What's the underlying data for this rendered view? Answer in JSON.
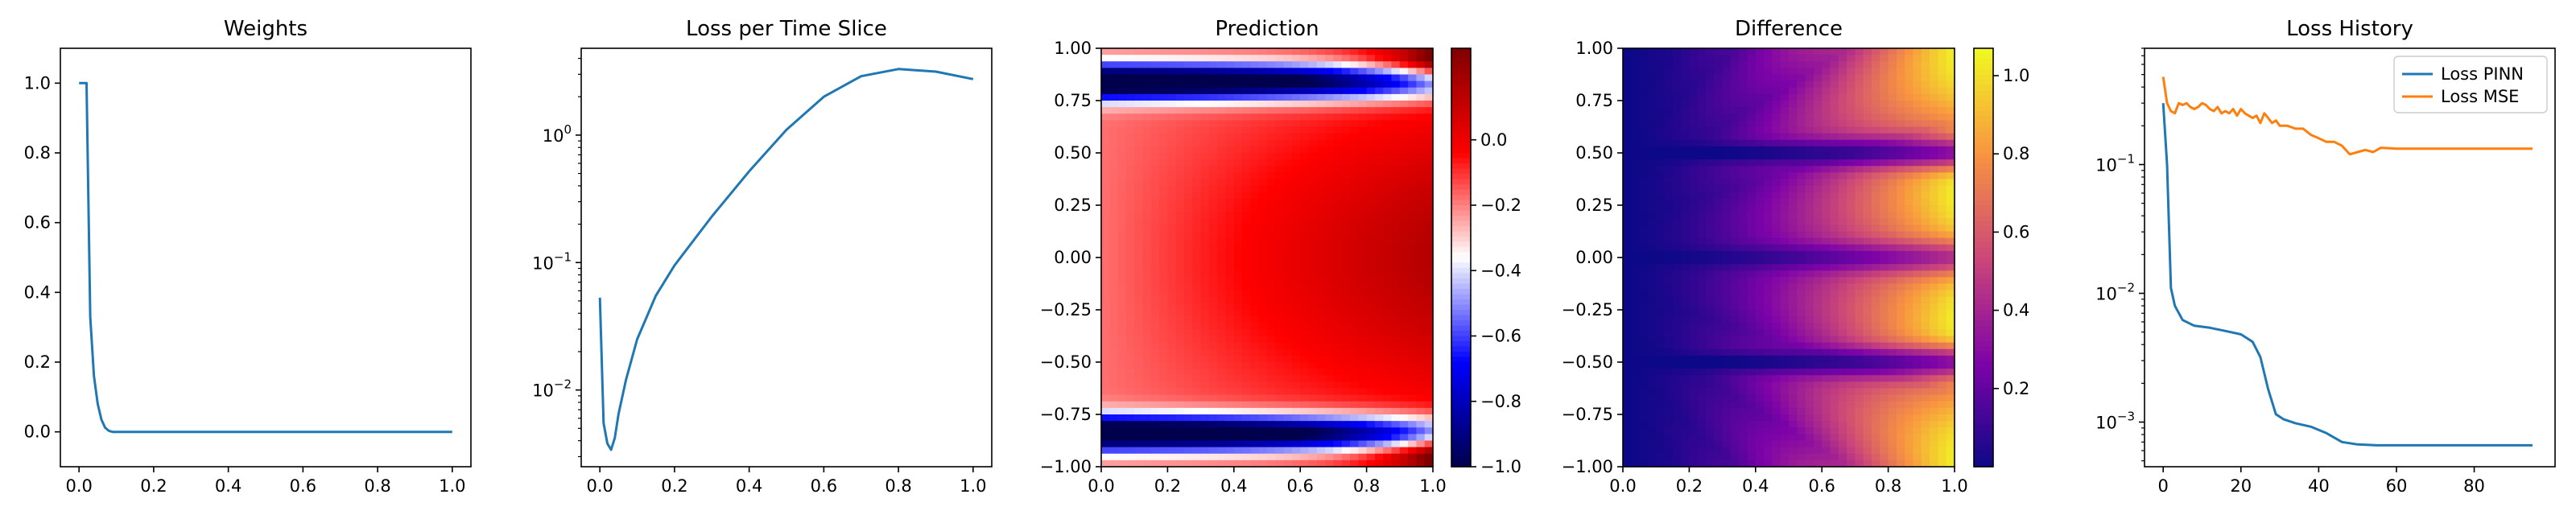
{
  "chart_data": [
    {
      "type": "line",
      "title": "Weights",
      "xlim": [
        -0.05,
        1.05
      ],
      "ylim": [
        -0.1,
        1.1
      ],
      "xticks": [
        "0.0",
        "0.2",
        "0.4",
        "0.6",
        "0.8",
        "1.0"
      ],
      "yticks": [
        "0.0",
        "0.2",
        "0.4",
        "0.6",
        "0.8",
        "1.0"
      ],
      "grid": false,
      "series": [
        {
          "color": "#1f77b4",
          "x": [
            0.0,
            0.01,
            0.02,
            0.03,
            0.04,
            0.05,
            0.06,
            0.07,
            0.08,
            0.09,
            0.1,
            0.2,
            0.4,
            0.6,
            0.8,
            1.0
          ],
          "y": [
            1.0,
            1.0,
            1.0,
            0.33,
            0.16,
            0.08,
            0.035,
            0.012,
            0.003,
            0.0,
            0.0,
            0.0,
            0.0,
            0.0,
            0.0,
            0.0
          ]
        }
      ]
    },
    {
      "type": "line",
      "title": "Loss per Time Slice",
      "yscale": "log",
      "xlim": [
        -0.05,
        1.05
      ],
      "ylim": [
        0.0025,
        4.8
      ],
      "xticks": [
        "0.0",
        "0.2",
        "0.4",
        "0.6",
        "0.8",
        "1.0"
      ],
      "yticks": [
        {
          "value": 0.01,
          "label": "10",
          "exp": "−2"
        },
        {
          "value": 0.1,
          "label": "10",
          "exp": "−1"
        },
        {
          "value": 1,
          "label": "10",
          "exp": "0"
        }
      ],
      "grid": false,
      "series": [
        {
          "color": "#1f77b4",
          "x": [
            0.0,
            0.01,
            0.02,
            0.03,
            0.04,
            0.05,
            0.07,
            0.1,
            0.15,
            0.2,
            0.3,
            0.4,
            0.5,
            0.6,
            0.7,
            0.8,
            0.9,
            1.0
          ],
          "y": [
            0.053,
            0.0055,
            0.0038,
            0.0034,
            0.0042,
            0.0065,
            0.012,
            0.025,
            0.055,
            0.095,
            0.23,
            0.52,
            1.1,
            2.0,
            2.9,
            3.3,
            3.15,
            2.75
          ]
        }
      ]
    },
    {
      "type": "heatmap",
      "title": "Prediction",
      "colormap": "seismic",
      "xlim": [
        0.0,
        1.0
      ],
      "ylim": [
        -1.0,
        1.0
      ],
      "clim": [
        -1.0,
        0.28
      ],
      "xticks": [
        "0.0",
        "0.2",
        "0.4",
        "0.6",
        "0.8",
        "1.0"
      ],
      "yticks": [
        "−1.00",
        "−0.75",
        "−0.50",
        "−0.25",
        "0.00",
        "0.25",
        "0.50",
        "0.75",
        "1.00"
      ],
      "colorbar_ticks": [
        "0.0",
        "−0.2",
        "−0.4",
        "−0.6",
        "−0.8",
        "−1.0"
      ],
      "colorbar_values": [
        0.0,
        -0.2,
        -0.4,
        -0.6,
        -0.8,
        -1.0
      ]
    },
    {
      "type": "heatmap",
      "title": "Difference",
      "colormap": "plasma",
      "xlim": [
        0.0,
        1.0
      ],
      "ylim": [
        -1.0,
        1.0
      ],
      "clim": [
        0.0,
        1.07
      ],
      "xticks": [
        "0.0",
        "0.2",
        "0.4",
        "0.6",
        "0.8",
        "1.0"
      ],
      "yticks": [
        "−1.00",
        "−0.75",
        "−0.50",
        "−0.25",
        "0.00",
        "0.25",
        "0.50",
        "0.75",
        "1.00"
      ],
      "colorbar_ticks": [
        "0.2",
        "0.4",
        "0.6",
        "0.8",
        "1.0"
      ],
      "colorbar_values": [
        0.2,
        0.4,
        0.6,
        0.8,
        1.0
      ]
    },
    {
      "type": "line",
      "title": "Loss History",
      "yscale": "log",
      "xlim": [
        -4.8,
        100.8
      ],
      "ylim": [
        0.00045,
        0.8
      ],
      "xticks": [
        0,
        20,
        40,
        60,
        80
      ],
      "yticks": [
        {
          "value": 0.001,
          "label": "10",
          "exp": "−3"
        },
        {
          "value": 0.01,
          "label": "10",
          "exp": "−2"
        },
        {
          "value": 0.1,
          "label": "10",
          "exp": "−1"
        }
      ],
      "legend": "top-right",
      "grid": false,
      "series": [
        {
          "name": "Loss PINN",
          "color": "#1f77b4",
          "x": [
            0,
            1,
            2,
            3,
            5,
            8,
            12,
            16,
            20,
            23,
            25,
            27,
            29,
            31,
            34,
            38,
            42,
            46,
            50,
            55,
            60,
            70,
            80,
            90,
            95
          ],
          "y": [
            0.3,
            0.1,
            0.011,
            0.008,
            0.0062,
            0.0056,
            0.0054,
            0.0051,
            0.0048,
            0.0042,
            0.0032,
            0.0018,
            0.00115,
            0.00105,
            0.00098,
            0.00092,
            0.00082,
            0.0007,
            0.00067,
            0.00066,
            0.00066,
            0.00066,
            0.00066,
            0.00066,
            0.00066
          ]
        },
        {
          "name": "Loss MSE",
          "color": "#ff7f0e",
          "x": [
            0,
            1,
            2,
            3,
            4,
            5,
            6,
            7,
            8,
            9,
            10,
            11,
            12,
            13,
            14,
            15,
            16,
            17,
            18,
            19,
            20,
            21,
            22,
            23,
            24,
            25,
            26,
            27,
            28,
            29,
            30,
            32,
            34,
            36,
            38,
            40,
            42,
            44,
            46,
            48,
            50,
            52,
            54,
            56,
            60,
            70,
            80,
            90,
            95
          ],
          "y": [
            0.48,
            0.3,
            0.26,
            0.25,
            0.3,
            0.29,
            0.3,
            0.28,
            0.27,
            0.28,
            0.3,
            0.29,
            0.27,
            0.26,
            0.28,
            0.25,
            0.26,
            0.25,
            0.27,
            0.24,
            0.27,
            0.25,
            0.24,
            0.23,
            0.24,
            0.21,
            0.25,
            0.23,
            0.21,
            0.22,
            0.2,
            0.2,
            0.19,
            0.19,
            0.17,
            0.16,
            0.15,
            0.15,
            0.14,
            0.12,
            0.125,
            0.13,
            0.125,
            0.135,
            0.133,
            0.133,
            0.133,
            0.133,
            0.133
          ]
        }
      ]
    }
  ]
}
